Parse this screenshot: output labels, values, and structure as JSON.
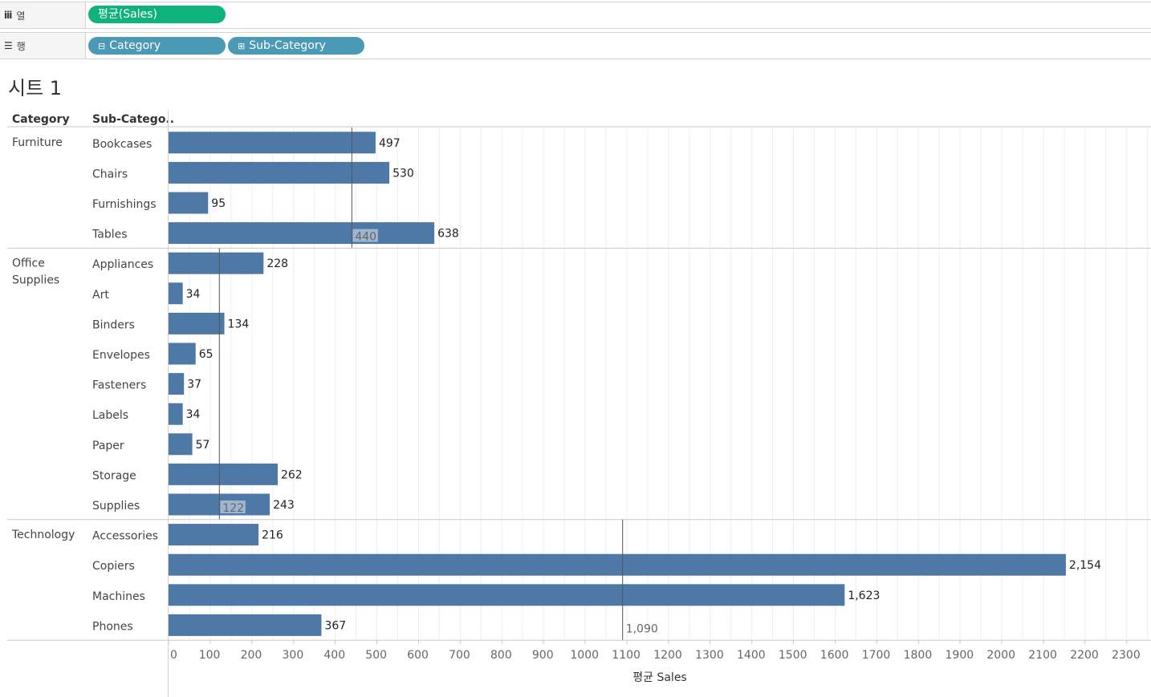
{
  "shelves": {
    "columns": {
      "icon": "columns-icon",
      "label": "열",
      "pills": [
        {
          "text": "평균(Sales)",
          "color": "#10b27c"
        }
      ]
    },
    "rows": {
      "icon": "rows-icon",
      "label": "행",
      "pills": [
        {
          "text": "Category",
          "prefix": "⊟",
          "color": "#4b9ab5"
        },
        {
          "text": "Sub-Category",
          "prefix": "⊞",
          "color": "#4b9ab5"
        }
      ]
    }
  },
  "sheet_title": "시트 1",
  "chart_data": {
    "type": "bar",
    "orientation": "horizontal",
    "header_labels": {
      "category": "Category",
      "subcategory": "Sub-Catego.."
    },
    "xlabel": "평균 Sales",
    "xlim": [
      0,
      2350
    ],
    "xticks": [
      0,
      100,
      200,
      300,
      400,
      500,
      600,
      700,
      800,
      900,
      1000,
      1100,
      1200,
      1300,
      1400,
      1500,
      1600,
      1700,
      1800,
      1900,
      2000,
      2100,
      2200,
      2300
    ],
    "grid": true,
    "bar_color": "#4e79a7",
    "groups": [
      {
        "category": "Furniture",
        "reference_line": {
          "value": 440,
          "label": "440"
        },
        "items": [
          {
            "name": "Bookcases",
            "value": 497,
            "label": "497"
          },
          {
            "name": "Chairs",
            "value": 530,
            "label": "530"
          },
          {
            "name": "Furnishings",
            "value": 95,
            "label": "95"
          },
          {
            "name": "Tables",
            "value": 638,
            "label": "638"
          }
        ]
      },
      {
        "category": "Office Supplies",
        "category_lines": [
          "Office",
          "Supplies"
        ],
        "reference_line": {
          "value": 122,
          "label": "122"
        },
        "items": [
          {
            "name": "Appliances",
            "value": 228,
            "label": "228"
          },
          {
            "name": "Art",
            "value": 34,
            "label": "34"
          },
          {
            "name": "Binders",
            "value": 134,
            "label": "134"
          },
          {
            "name": "Envelopes",
            "value": 65,
            "label": "65"
          },
          {
            "name": "Fasteners",
            "value": 37,
            "label": "37"
          },
          {
            "name": "Labels",
            "value": 34,
            "label": "34"
          },
          {
            "name": "Paper",
            "value": 57,
            "label": "57"
          },
          {
            "name": "Storage",
            "value": 262,
            "label": "262"
          },
          {
            "name": "Supplies",
            "value": 243,
            "label": "243"
          }
        ]
      },
      {
        "category": "Technology",
        "reference_line": {
          "value": 1090,
          "label": "1,090"
        },
        "items": [
          {
            "name": "Accessories",
            "value": 216,
            "label": "216"
          },
          {
            "name": "Copiers",
            "value": 2154,
            "label": "2,154"
          },
          {
            "name": "Machines",
            "value": 1623,
            "label": "1,623"
          },
          {
            "name": "Phones",
            "value": 367,
            "label": "367"
          }
        ]
      }
    ]
  }
}
